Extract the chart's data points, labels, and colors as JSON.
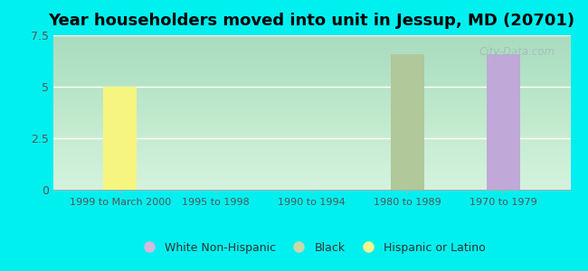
{
  "title": "Year householders moved into unit in Jessup, MD (20701)",
  "categories": [
    "1999 to March 2000",
    "1995 to 1998",
    "1990 to 1994",
    "1980 to 1989",
    "1970 to 1979"
  ],
  "series": {
    "White Non-Hispanic": [
      0,
      0,
      0,
      0,
      6.6
    ],
    "Black": [
      0,
      0,
      0,
      6.6,
      0
    ],
    "Hispanic or Latino": [
      5.0,
      0,
      0,
      0,
      0
    ]
  },
  "bar_colors": {
    "White Non-Hispanic": "#c0a8d8",
    "Black": "#b0c89a",
    "Hispanic or Latino": "#f5f580"
  },
  "legend_colors": {
    "White Non-Hispanic": "#d4b8e0",
    "Black": "#c8d8a8",
    "Hispanic or Latino": "#f5f590"
  },
  "ylim": [
    0,
    7.5
  ],
  "yticks": [
    0,
    2.5,
    5,
    7.5
  ],
  "ytick_labels": [
    "0",
    "2.5",
    "5",
    "7.5"
  ],
  "outer_background": "#00f0f0",
  "bar_width": 0.35,
  "title_fontsize": 13,
  "watermark": "City-Data.com",
  "legend_order": [
    "White Non-Hispanic",
    "Black",
    "Hispanic or Latino"
  ]
}
